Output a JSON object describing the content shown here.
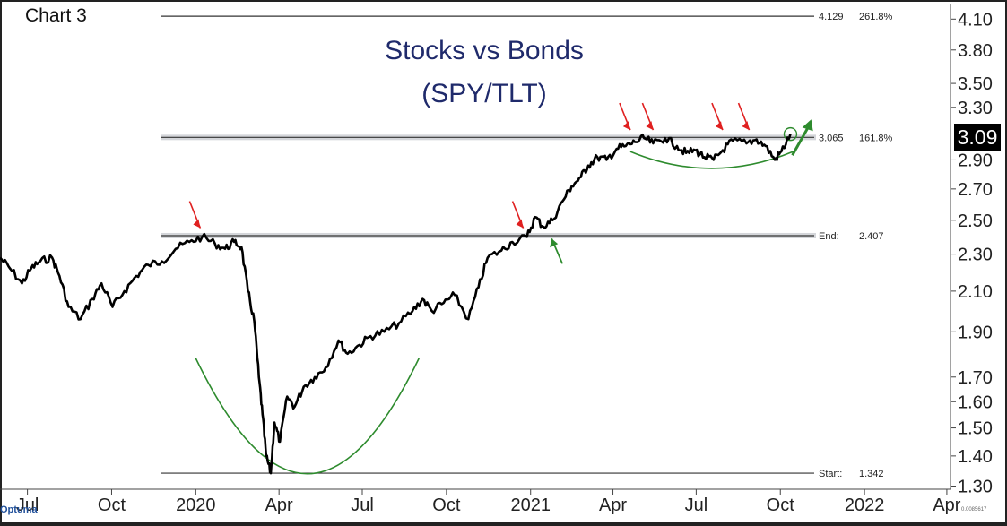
{
  "chart_tag": "Chart 3",
  "brand": "Optuma",
  "footer_code": "0.0085617",
  "last_value_badge": "3.09",
  "chart_data": {
    "type": "line",
    "title": "Stocks vs Bonds",
    "subtitle": "(SPY/TLT)",
    "xlabel": "",
    "ylabel": "",
    "y_scale": "log",
    "ylim": [
      1.29,
      4.25
    ],
    "xlim": [
      "2019-06-01",
      "2022-04-05"
    ],
    "x_tick_labels": [
      {
        "label": "Jul",
        "date": "2019-07-01"
      },
      {
        "label": "Oct",
        "date": "2019-10-01"
      },
      {
        "label": "2020",
        "date": "2020-01-01"
      },
      {
        "label": "Apr",
        "date": "2020-04-01"
      },
      {
        "label": "Jul",
        "date": "2020-07-01"
      },
      {
        "label": "Oct",
        "date": "2020-10-01"
      },
      {
        "label": "2021",
        "date": "2021-01-01"
      },
      {
        "label": "Apr",
        "date": "2021-04-01"
      },
      {
        "label": "Jul",
        "date": "2021-07-01"
      },
      {
        "label": "Oct",
        "date": "2021-10-01"
      },
      {
        "label": "2022",
        "date": "2022-01-01"
      },
      {
        "label": "Apr",
        "date": "2022-04-01"
      }
    ],
    "y_ticks": [
      4.1,
      3.8,
      3.5,
      3.3,
      2.9,
      2.7,
      2.5,
      2.3,
      2.1,
      1.9,
      1.7,
      1.6,
      1.5,
      1.4,
      1.3
    ],
    "y_tick_labels": [
      "4.10",
      "3.80",
      "3.50",
      "3.30",
      "2.90",
      "2.70",
      "2.50",
      "2.30",
      "2.10",
      "1.90",
      "1.70",
      "1.60",
      "1.50",
      "1.40",
      "1.30"
    ],
    "levels": [
      {
        "value": 4.129,
        "label": "4.129",
        "pct": "261.8%",
        "style": "thin"
      },
      {
        "value": 3.065,
        "label": "3.065",
        "pct": "161.8%",
        "style": "band"
      },
      {
        "value": 2.407,
        "label": "End:",
        "pct": "2.407",
        "style": "band"
      },
      {
        "value": 1.342,
        "label": "Start:",
        "pct": "1.342",
        "style": "thin"
      }
    ],
    "series": [
      {
        "points": [
          [
            "2019-06-01",
            2.28
          ],
          [
            "2019-06-12",
            2.22
          ],
          [
            "2019-06-25",
            2.14
          ],
          [
            "2019-07-05",
            2.22
          ],
          [
            "2019-07-15",
            2.26
          ],
          [
            "2019-07-28",
            2.28
          ],
          [
            "2019-08-05",
            2.18
          ],
          [
            "2019-08-15",
            2.02
          ],
          [
            "2019-08-28",
            1.96
          ],
          [
            "2019-09-10",
            2.06
          ],
          [
            "2019-09-20",
            2.14
          ],
          [
            "2019-10-02",
            2.02
          ],
          [
            "2019-10-15",
            2.1
          ],
          [
            "2019-10-28",
            2.18
          ],
          [
            "2019-11-10",
            2.24
          ],
          [
            "2019-11-25",
            2.26
          ],
          [
            "2019-12-10",
            2.33
          ],
          [
            "2019-12-25",
            2.37
          ],
          [
            "2020-01-08",
            2.4
          ],
          [
            "2020-01-22",
            2.36
          ],
          [
            "2020-02-02",
            2.33
          ],
          [
            "2020-02-12",
            2.37
          ],
          [
            "2020-02-20",
            2.34
          ],
          [
            "2020-02-27",
            2.1
          ],
          [
            "2020-03-05",
            1.95
          ],
          [
            "2020-03-10",
            1.7
          ],
          [
            "2020-03-14",
            1.55
          ],
          [
            "2020-03-18",
            1.4
          ],
          [
            "2020-03-23",
            1.342
          ],
          [
            "2020-03-27",
            1.52
          ],
          [
            "2020-04-02",
            1.45
          ],
          [
            "2020-04-10",
            1.62
          ],
          [
            "2020-04-18",
            1.58
          ],
          [
            "2020-04-28",
            1.66
          ],
          [
            "2020-05-10",
            1.7
          ],
          [
            "2020-05-22",
            1.74
          ],
          [
            "2020-06-05",
            1.86
          ],
          [
            "2020-06-15",
            1.8
          ],
          [
            "2020-06-28",
            1.84
          ],
          [
            "2020-07-10",
            1.88
          ],
          [
            "2020-07-25",
            1.9
          ],
          [
            "2020-08-10",
            1.94
          ],
          [
            "2020-08-25",
            2.0
          ],
          [
            "2020-09-05",
            2.06
          ],
          [
            "2020-09-15",
            2.0
          ],
          [
            "2020-09-28",
            2.04
          ],
          [
            "2020-10-10",
            2.08
          ],
          [
            "2020-10-25",
            1.96
          ],
          [
            "2020-11-05",
            2.12
          ],
          [
            "2020-11-15",
            2.28
          ],
          [
            "2020-11-30",
            2.32
          ],
          [
            "2020-12-12",
            2.37
          ],
          [
            "2020-12-28",
            2.4
          ],
          [
            "2021-01-06",
            2.52
          ],
          [
            "2021-01-15",
            2.46
          ],
          [
            "2021-01-25",
            2.5
          ],
          [
            "2021-02-05",
            2.62
          ],
          [
            "2021-02-15",
            2.72
          ],
          [
            "2021-02-25",
            2.78
          ],
          [
            "2021-03-05",
            2.86
          ],
          [
            "2021-03-15",
            2.92
          ],
          [
            "2021-03-25",
            2.9
          ],
          [
            "2021-04-05",
            2.98
          ],
          [
            "2021-04-15",
            3.0
          ],
          [
            "2021-04-25",
            3.03
          ],
          [
            "2021-05-05",
            3.06
          ],
          [
            "2021-05-15",
            3.02
          ],
          [
            "2021-05-28",
            3.06
          ],
          [
            "2021-06-10",
            3.0
          ],
          [
            "2021-06-20",
            2.95
          ],
          [
            "2021-06-30",
            2.97
          ],
          [
            "2021-07-10",
            2.92
          ],
          [
            "2021-07-20",
            2.9
          ],
          [
            "2021-07-30",
            2.97
          ],
          [
            "2021-08-10",
            3.04
          ],
          [
            "2021-08-25",
            3.02
          ],
          [
            "2021-09-05",
            3.05
          ],
          [
            "2021-09-15",
            3.0
          ],
          [
            "2021-09-25",
            2.9
          ],
          [
            "2021-10-02",
            2.96
          ],
          [
            "2021-10-12",
            3.09
          ]
        ]
      }
    ],
    "annotations": {
      "red_arrows": [
        {
          "date": "2020-01-06",
          "value": 2.42
        },
        {
          "date": "2020-12-24",
          "value": 2.42
        },
        {
          "date": "2021-04-20",
          "value": 3.08
        },
        {
          "date": "2021-05-15",
          "value": 3.08
        },
        {
          "date": "2021-07-30",
          "value": 3.08
        },
        {
          "date": "2021-08-28",
          "value": 3.08
        }
      ],
      "green_arrows": [
        {
          "date": "2021-01-24",
          "value": 2.4,
          "direction": "up-left"
        },
        {
          "date": "2021-10-22",
          "value": 3.12,
          "direction": "up-right"
        }
      ],
      "green_arcs": [
        {
          "from": "2020-01-01",
          "to": "2020-09-01",
          "top": 1.78,
          "bottom": 1.34
        },
        {
          "from": "2021-04-20",
          "to": "2021-10-15",
          "top": 2.96,
          "bottom": 2.84
        }
      ],
      "circle_marker": {
        "date": "2021-10-12",
        "value": 3.09
      }
    }
  }
}
